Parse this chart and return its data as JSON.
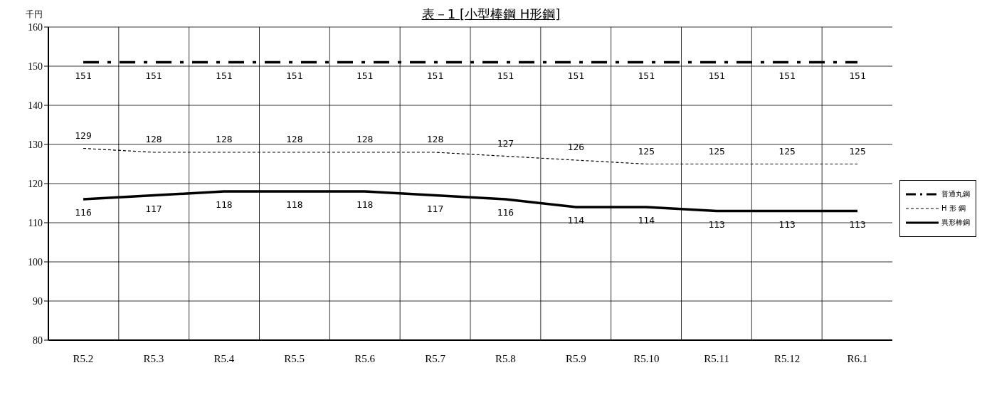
{
  "chart_data": {
    "type": "line",
    "title": "表－1 [小型棒鋼 H形鋼]",
    "ylabel": "千円",
    "categories": [
      "R5.2",
      "R5.3",
      "R5.4",
      "R5.5",
      "R5.6",
      "R5.7",
      "R5.8",
      "R5.9",
      "R5.10",
      "R5.11",
      "R5.12",
      "R6.1"
    ],
    "series": [
      {
        "name": "普通丸鋼",
        "color": "#000000",
        "line_style": "dashdot",
        "values": [
          151,
          151,
          151,
          151,
          151,
          151,
          151,
          151,
          151,
          151,
          151,
          151
        ]
      },
      {
        "name": "H 形 鋼",
        "color": "#000000",
        "line_style": "dashed",
        "values": [
          129,
          128,
          128,
          128,
          128,
          128,
          127,
          126,
          125,
          125,
          125,
          125
        ]
      },
      {
        "name": "異形棒鋼",
        "color": "#000000",
        "line_style": "solid",
        "values": [
          116,
          117,
          118,
          118,
          118,
          117,
          116,
          114,
          114,
          113,
          113,
          113
        ]
      }
    ],
    "ylim": [
      80,
      160
    ],
    "yticks": [
      80,
      90,
      100,
      110,
      120,
      130,
      140,
      150,
      160
    ],
    "grid": true,
    "legend": "right",
    "data_labels": true,
    "marker": "none"
  }
}
